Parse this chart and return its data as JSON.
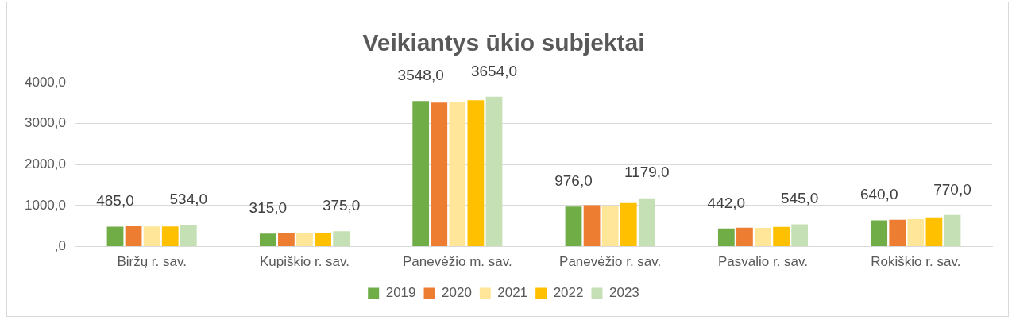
{
  "chart_data": {
    "type": "bar",
    "title": "Veikiantys ūkio subjektai",
    "categories": [
      "Biržų r. sav.",
      "Kupiškio r. sav.",
      "Panevėžio m. sav.",
      "Panevėžio r. sav.",
      "Pasvalio r. sav.",
      "Rokiškio r. sav."
    ],
    "series": [
      {
        "name": "2019",
        "color": "#70ad47",
        "values": [
          485,
          315,
          3548,
          976,
          442,
          640
        ],
        "value_labels": [
          "485,0",
          "315,0",
          "3548,0",
          "976,0",
          "442,0",
          "640,0"
        ]
      },
      {
        "name": "2020",
        "color": "#ed7d31",
        "values": [
          495,
          335,
          3510,
          1010,
          460,
          655
        ]
      },
      {
        "name": "2021",
        "color": "#ffe699",
        "values": [
          490,
          330,
          3530,
          1000,
          455,
          670
        ]
      },
      {
        "name": "2022",
        "color": "#ffc000",
        "values": [
          492,
          340,
          3570,
          1060,
          480,
          715
        ]
      },
      {
        "name": "2023",
        "color": "#c5e0b4",
        "values": [
          534,
          375,
          3654,
          1179,
          545,
          770
        ],
        "value_labels": [
          "534,0",
          "375,0",
          "3654,0",
          "1179,0",
          "545,0",
          "770,0"
        ]
      }
    ],
    "ylim": [
      0,
      4000
    ],
    "yticks": [
      {
        "value": 0,
        "label": ",0"
      },
      {
        "value": 1000,
        "label": "1000,0"
      },
      {
        "value": 2000,
        "label": "2000,0"
      },
      {
        "value": 3000,
        "label": "3000,0"
      },
      {
        "value": 4000,
        "label": "4000,0"
      }
    ],
    "grid": "y",
    "legend": "bottom"
  }
}
